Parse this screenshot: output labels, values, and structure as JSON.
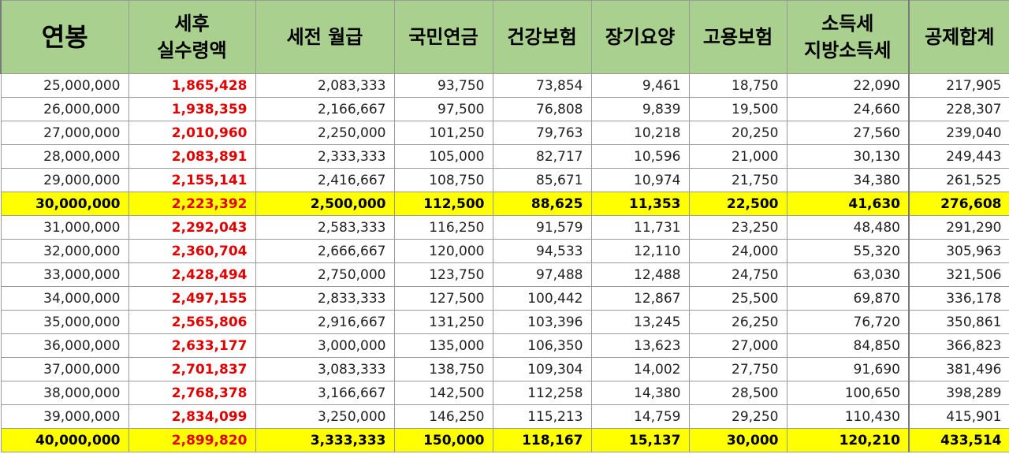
{
  "headers": [
    "연봉",
    "세후\n실수령액",
    "세전 월급",
    "국민연금",
    "건강보험",
    "장기요양",
    "고용보험",
    "소득세\n지방소득세",
    "공제합계"
  ],
  "rows": [
    {
      "highlight": false,
      "cells": [
        "25,000,000",
        "1,865,428",
        "2,083,333",
        "93,750",
        "73,854",
        "9,461",
        "18,750",
        "22,090",
        "217,905"
      ]
    },
    {
      "highlight": false,
      "cells": [
        "26,000,000",
        "1,938,359",
        "2,166,667",
        "97,500",
        "76,808",
        "9,839",
        "19,500",
        "24,660",
        "228,307"
      ]
    },
    {
      "highlight": false,
      "cells": [
        "27,000,000",
        "2,010,960",
        "2,250,000",
        "101,250",
        "79,763",
        "10,218",
        "20,250",
        "27,560",
        "239,040"
      ]
    },
    {
      "highlight": false,
      "cells": [
        "28,000,000",
        "2,083,891",
        "2,333,333",
        "105,000",
        "82,717",
        "10,596",
        "21,000",
        "30,130",
        "249,443"
      ]
    },
    {
      "highlight": false,
      "cells": [
        "29,000,000",
        "2,155,141",
        "2,416,667",
        "108,750",
        "85,671",
        "10,974",
        "21,750",
        "34,380",
        "261,525"
      ]
    },
    {
      "highlight": true,
      "cells": [
        "30,000,000",
        "2,223,392",
        "2,500,000",
        "112,500",
        "88,625",
        "11,353",
        "22,500",
        "41,630",
        "276,608"
      ]
    },
    {
      "highlight": false,
      "cells": [
        "31,000,000",
        "2,292,043",
        "2,583,333",
        "116,250",
        "91,579",
        "11,731",
        "23,250",
        "48,480",
        "291,290"
      ]
    },
    {
      "highlight": false,
      "cells": [
        "32,000,000",
        "2,360,704",
        "2,666,667",
        "120,000",
        "94,533",
        "12,110",
        "24,000",
        "55,320",
        "305,963"
      ]
    },
    {
      "highlight": false,
      "cells": [
        "33,000,000",
        "2,428,494",
        "2,750,000",
        "123,750",
        "97,488",
        "12,488",
        "24,750",
        "63,030",
        "321,506"
      ]
    },
    {
      "highlight": false,
      "cells": [
        "34,000,000",
        "2,497,155",
        "2,833,333",
        "127,500",
        "100,442",
        "12,867",
        "25,500",
        "69,870",
        "336,178"
      ]
    },
    {
      "highlight": false,
      "cells": [
        "35,000,000",
        "2,565,806",
        "2,916,667",
        "131,250",
        "103,396",
        "13,245",
        "26,250",
        "76,720",
        "350,861"
      ]
    },
    {
      "highlight": false,
      "cells": [
        "36,000,000",
        "2,633,177",
        "3,000,000",
        "135,000",
        "106,350",
        "13,623",
        "27,000",
        "84,850",
        "366,823"
      ]
    },
    {
      "highlight": false,
      "cells": [
        "37,000,000",
        "2,701,837",
        "3,083,333",
        "138,750",
        "109,304",
        "14,002",
        "27,750",
        "91,690",
        "381,496"
      ]
    },
    {
      "highlight": false,
      "cells": [
        "38,000,000",
        "2,768,378",
        "3,166,667",
        "142,500",
        "112,258",
        "14,380",
        "28,500",
        "100,650",
        "398,289"
      ]
    },
    {
      "highlight": false,
      "cells": [
        "39,000,000",
        "2,834,099",
        "3,250,000",
        "146,250",
        "115,213",
        "14,759",
        "29,250",
        "110,430",
        "415,901"
      ]
    },
    {
      "highlight": true,
      "cells": [
        "40,000,000",
        "2,899,820",
        "3,333,333",
        "150,000",
        "118,167",
        "15,137",
        "30,000",
        "120,210",
        "433,514"
      ]
    }
  ]
}
